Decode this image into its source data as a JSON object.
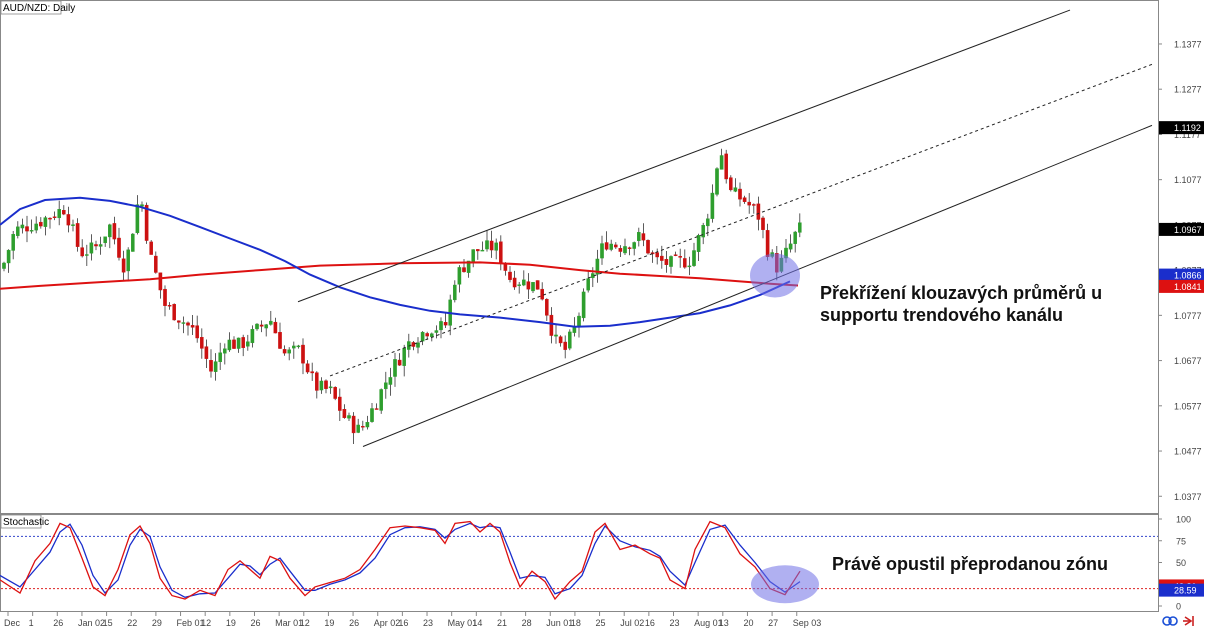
{
  "chart_data": [
    {
      "type": "candlestick",
      "title": "AUD/NZD: Daily",
      "x_tick_labels": [
        "Dec",
        "1",
        "26",
        "Jan 02",
        "15",
        "22",
        "29",
        "Feb 01",
        "12",
        "19",
        "26",
        "Mar 01",
        "12",
        "19",
        "26",
        "Apr 02",
        "16",
        "23",
        "May 01",
        "14",
        "21",
        "28",
        "Jun 01",
        "18",
        "25",
        "Jul 02",
        "16",
        "23",
        "Aug 01",
        "13",
        "20",
        "27",
        "Sep 03"
      ],
      "y_ticks": [
        "1.1377",
        "1.1277",
        "1.1177",
        "1.1077",
        "1.0977",
        "1.0877",
        "1.0777",
        "1.0677",
        "1.0577",
        "1.0477",
        "1.0377"
      ],
      "ylim": [
        1.034,
        1.1472
      ],
      "price_labels": [
        {
          "text": "1.1192",
          "value": 1.1192,
          "color": "#000000"
        },
        {
          "text": "1.0967",
          "value": 1.0967,
          "color": "#000000"
        },
        {
          "text": "1.0866",
          "value": 1.0866,
          "color": "#1a2ecc"
        },
        {
          "text": "1.0841",
          "value": 1.0841,
          "color": "#dd1111"
        }
      ],
      "bullish_color": "#2e9e2e",
      "bearish_color": "#cc1111",
      "ma_fast": {
        "color": "#1a2ecc",
        "points": [
          [
            0,
            1.0977
          ],
          [
            20,
            1.1012
          ],
          [
            45,
            1.1032
          ],
          [
            80,
            1.1037
          ],
          [
            110,
            1.103
          ],
          [
            140,
            1.1017
          ],
          [
            170,
            1.0997
          ],
          [
            200,
            1.0972
          ],
          [
            230,
            1.0947
          ],
          [
            260,
            1.0922
          ],
          [
            285,
            1.0897
          ],
          [
            310,
            1.0867
          ],
          [
            340,
            1.0839
          ],
          [
            370,
            1.0817
          ],
          [
            400,
            1.08
          ],
          [
            430,
            1.0787
          ],
          [
            460,
            1.0779
          ],
          [
            500,
            1.0772
          ],
          [
            540,
            1.0762
          ],
          [
            575,
            1.0752
          ],
          [
            610,
            1.0754
          ],
          [
            640,
            1.0762
          ],
          [
            670,
            1.0772
          ],
          [
            700,
            1.0782
          ],
          [
            730,
            1.0799
          ],
          [
            760,
            1.0822
          ],
          [
            790,
            1.0852
          ]
        ]
      },
      "ma_slow": {
        "color": "#dd1111",
        "points": [
          [
            0,
            1.0836
          ],
          [
            40,
            1.0842
          ],
          [
            90,
            1.0849
          ],
          [
            150,
            1.0857
          ],
          [
            200,
            1.0867
          ],
          [
            260,
            1.0877
          ],
          [
            320,
            1.0887
          ],
          [
            400,
            1.0892
          ],
          [
            480,
            1.0894
          ],
          [
            530,
            1.0889
          ],
          [
            580,
            1.0877
          ],
          [
            620,
            1.0869
          ],
          [
            660,
            1.0864
          ],
          [
            700,
            1.0859
          ],
          [
            740,
            1.0852
          ],
          [
            770,
            1.0847
          ],
          [
            798,
            1.0843
          ]
        ]
      },
      "channel": {
        "color": "#222222",
        "upper": [
          [
            298,
            1.0807
          ],
          [
            1070,
            1.1452
          ]
        ],
        "middle": [
          [
            330,
            1.0643
          ],
          [
            1152,
            1.1332
          ]
        ],
        "lower": [
          [
            363,
            1.0487
          ],
          [
            1152,
            1.1197
          ]
        ]
      },
      "highlight_circle_value": 1.0865,
      "annotation_lines": [
        "Překřížení klouzavých průměrů u",
        "supportu trendového kanálu"
      ]
    },
    {
      "type": "line",
      "title": "Stochastic",
      "y_ticks": [
        "100",
        "75",
        "50",
        "25",
        "0"
      ],
      "ylim": [
        0,
        100
      ],
      "levels": [
        80,
        20
      ],
      "price_labels": [
        {
          "text": "40.31",
          "value": 40.31,
          "color": "#dd1111"
        },
        {
          "text": "28.59",
          "value": 28.59,
          "color": "#1a2ecc"
        }
      ],
      "k_color": "#dd1111",
      "d_color": "#1a2ecc",
      "k_points": [
        [
          0,
          30
        ],
        [
          20,
          15
        ],
        [
          35,
          52
        ],
        [
          50,
          72
        ],
        [
          60,
          95
        ],
        [
          70,
          90
        ],
        [
          82,
          55
        ],
        [
          93,
          22
        ],
        [
          105,
          12
        ],
        [
          118,
          42
        ],
        [
          130,
          82
        ],
        [
          140,
          92
        ],
        [
          150,
          72
        ],
        [
          160,
          32
        ],
        [
          172,
          12
        ],
        [
          185,
          8
        ],
        [
          200,
          18
        ],
        [
          215,
          12
        ],
        [
          228,
          42
        ],
        [
          240,
          52
        ],
        [
          250,
          42
        ],
        [
          260,
          32
        ],
        [
          270,
          57
        ],
        [
          280,
          52
        ],
        [
          290,
          32
        ],
        [
          305,
          12
        ],
        [
          315,
          22
        ],
        [
          330,
          27
        ],
        [
          345,
          32
        ],
        [
          360,
          42
        ],
        [
          375,
          65
        ],
        [
          390,
          90
        ],
        [
          405,
          92
        ],
        [
          420,
          90
        ],
        [
          435,
          87
        ],
        [
          445,
          72
        ],
        [
          455,
          95
        ],
        [
          470,
          97
        ],
        [
          480,
          85
        ],
        [
          490,
          95
        ],
        [
          500,
          85
        ],
        [
          510,
          50
        ],
        [
          520,
          22
        ],
        [
          532,
          40
        ],
        [
          545,
          28
        ],
        [
          555,
          8
        ],
        [
          570,
          28
        ],
        [
          582,
          40
        ],
        [
          595,
          85
        ],
        [
          605,
          95
        ],
        [
          620,
          65
        ],
        [
          635,
          70
        ],
        [
          650,
          60
        ],
        [
          660,
          55
        ],
        [
          670,
          30
        ],
        [
          685,
          20
        ],
        [
          695,
          65
        ],
        [
          710,
          97
        ],
        [
          725,
          90
        ],
        [
          740,
          60
        ],
        [
          755,
          45
        ],
        [
          770,
          20
        ],
        [
          785,
          13
        ],
        [
          800,
          40
        ]
      ],
      "d_points": [
        [
          0,
          35
        ],
        [
          20,
          22
        ],
        [
          35,
          42
        ],
        [
          50,
          62
        ],
        [
          60,
          85
        ],
        [
          70,
          94
        ],
        [
          82,
          70
        ],
        [
          93,
          35
        ],
        [
          105,
          15
        ],
        [
          118,
          30
        ],
        [
          130,
          70
        ],
        [
          140,
          88
        ],
        [
          150,
          80
        ],
        [
          160,
          45
        ],
        [
          172,
          18
        ],
        [
          185,
          10
        ],
        [
          200,
          14
        ],
        [
          215,
          15
        ],
        [
          228,
          32
        ],
        [
          240,
          48
        ],
        [
          250,
          46
        ],
        [
          260,
          36
        ],
        [
          270,
          48
        ],
        [
          280,
          55
        ],
        [
          290,
          40
        ],
        [
          305,
          18
        ],
        [
          315,
          18
        ],
        [
          330,
          25
        ],
        [
          345,
          30
        ],
        [
          360,
          38
        ],
        [
          375,
          55
        ],
        [
          390,
          82
        ],
        [
          405,
          90
        ],
        [
          420,
          91
        ],
        [
          435,
          88
        ],
        [
          445,
          78
        ],
        [
          455,
          88
        ],
        [
          470,
          95
        ],
        [
          480,
          90
        ],
        [
          490,
          92
        ],
        [
          500,
          90
        ],
        [
          510,
          62
        ],
        [
          520,
          32
        ],
        [
          532,
          35
        ],
        [
          545,
          33
        ],
        [
          555,
          14
        ],
        [
          570,
          20
        ],
        [
          582,
          35
        ],
        [
          595,
          72
        ],
        [
          605,
          92
        ],
        [
          620,
          75
        ],
        [
          635,
          68
        ],
        [
          650,
          64
        ],
        [
          660,
          57
        ],
        [
          670,
          40
        ],
        [
          685,
          24
        ],
        [
          695,
          50
        ],
        [
          710,
          88
        ],
        [
          725,
          93
        ],
        [
          740,
          70
        ],
        [
          755,
          50
        ],
        [
          770,
          28
        ],
        [
          785,
          16
        ],
        [
          800,
          28
        ]
      ],
      "highlight_circle_value": 25,
      "annotation_lines": [
        "Právě opustil přeprodanou zónu"
      ]
    }
  ]
}
